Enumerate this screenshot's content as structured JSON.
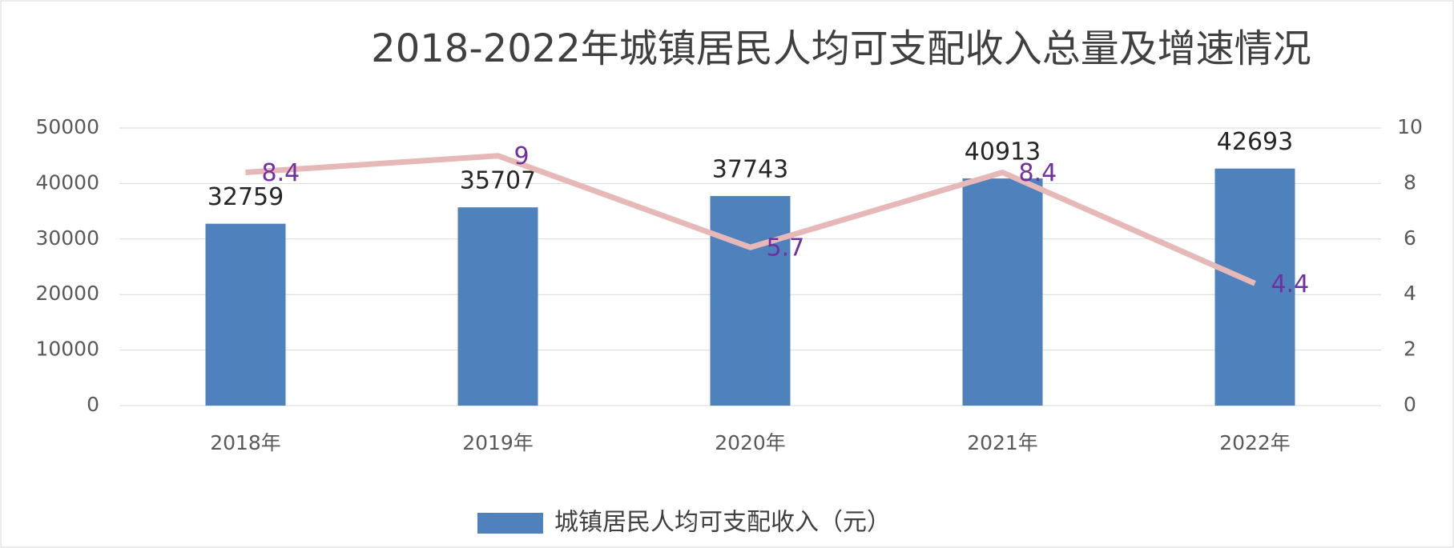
{
  "chart_data": {
    "type": "bar-line",
    "title": "2018-2022年城镇居民人均可支配收入总量及增速情况",
    "categories": [
      "2018年",
      "2019年",
      "2020年",
      "2021年",
      "2022年"
    ],
    "series": [
      {
        "name": "城镇居民人均可支配收入（元）",
        "type": "bar",
        "color": "#4f81bd",
        "values": [
          32759,
          35707,
          37743,
          40913,
          42693
        ]
      },
      {
        "type": "line",
        "axis": "y2",
        "color": "#e6b9b8",
        "label_color": "#7030a0",
        "values": [
          8.4,
          9,
          5.7,
          8.4,
          4.4
        ]
      }
    ],
    "ylim": [
      0,
      50000
    ],
    "yticks": [
      0,
      10000,
      20000,
      30000,
      40000,
      50000
    ],
    "y2lim": [
      0,
      10
    ],
    "y2ticks": [
      0,
      2,
      4,
      6,
      8,
      10
    ],
    "grid": true,
    "legend": "bottom"
  }
}
